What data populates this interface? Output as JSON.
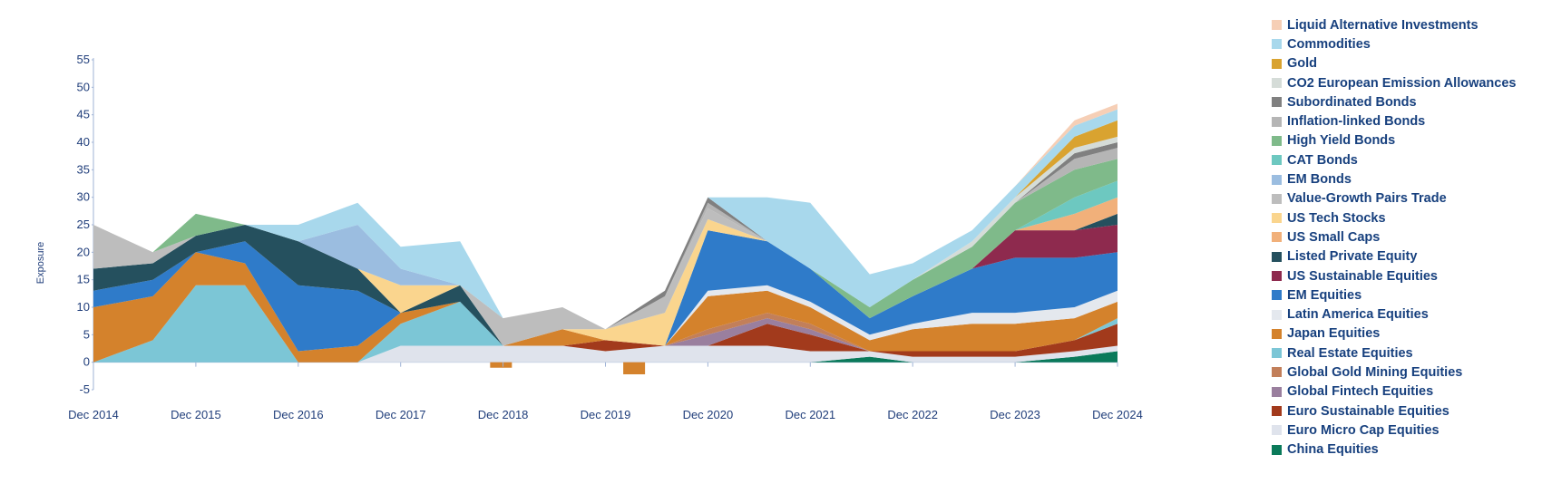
{
  "chart_data": {
    "type": "area",
    "ylabel": "Exposure",
    "ylim": [
      -5,
      55
    ],
    "yticks": [
      "55",
      "50",
      "45",
      "40",
      "35",
      "30",
      "25",
      "20",
      "15",
      "10",
      "5",
      "0",
      "-5"
    ],
    "xticks": [
      "Dec 2014",
      "Dec 2015",
      "Dec 2016",
      "Dec 2017",
      "Dec 2018",
      "Dec 2019",
      "Dec 2020",
      "Dec 2021",
      "Dec 2022",
      "Dec 2023",
      "Dec 2024"
    ],
    "x": [
      2014.92,
      2015.5,
      2015.92,
      2016.4,
      2016.92,
      2017.5,
      2017.92,
      2018.5,
      2018.92,
      2019.5,
      2019.92,
      2020.5,
      2020.92,
      2021.5,
      2021.92,
      2022.5,
      2022.92,
      2023.5,
      2023.92,
      2024.5,
      2024.92
    ],
    "legend_position": "right",
    "series": [
      {
        "name": "China Equities",
        "color": "#0a7a5a",
        "values": [
          0,
          0,
          0,
          0,
          0,
          0,
          0,
          0,
          0,
          0,
          0,
          0,
          0,
          0,
          0,
          1,
          0,
          0,
          0,
          1,
          2
        ]
      },
      {
        "name": "Euro Micro Cap Equities",
        "color": "#dfe3ec",
        "values": [
          0,
          0,
          0,
          0,
          0,
          0,
          3,
          3,
          3,
          3,
          2,
          3,
          3,
          3,
          2,
          1,
          1,
          1,
          1,
          1,
          1
        ]
      },
      {
        "name": "Euro Sustainable Equities",
        "color": "#a23a1c",
        "values": [
          0,
          0,
          0,
          0,
          0,
          0,
          0,
          0,
          0,
          0,
          2,
          0,
          0,
          4,
          3,
          0,
          1,
          1,
          1,
          2,
          4
        ]
      },
      {
        "name": "Global Fintech Equities",
        "color": "#9a7f9e",
        "values": [
          0,
          0,
          0,
          0,
          0,
          0,
          0,
          0,
          0,
          0,
          0,
          0,
          2,
          1,
          1,
          0,
          0,
          0,
          0,
          0,
          0
        ]
      },
      {
        "name": "Global Gold Mining Equities",
        "color": "#c27f5a",
        "values": [
          0,
          0,
          0,
          0,
          0,
          0,
          0,
          0,
          0,
          0,
          0,
          0,
          1,
          1,
          1,
          0,
          0,
          0,
          0,
          0,
          0
        ]
      },
      {
        "name": "Real Estate Equities",
        "color": "#7cc6d6",
        "values": [
          0,
          4,
          14,
          14,
          0,
          0,
          4,
          8,
          0,
          0,
          0,
          0,
          0,
          0,
          0,
          0,
          0,
          0,
          0,
          0,
          1
        ]
      },
      {
        "name": "Japan Equities",
        "color": "#d4822c",
        "values": [
          10,
          8,
          6,
          4,
          2,
          3,
          2,
          0,
          0,
          3,
          0,
          0,
          6,
          4,
          3,
          2,
          4,
          5,
          5,
          4,
          3
        ]
      },
      {
        "name": "Latin America Equities",
        "color": "#e4e8ee",
        "values": [
          0,
          0,
          0,
          0,
          0,
          0,
          0,
          0,
          0,
          0,
          0,
          0,
          1,
          1,
          1,
          1,
          1,
          2,
          2,
          2,
          2
        ]
      },
      {
        "name": "EM Equities",
        "color": "#2f7bc9",
        "values": [
          3,
          3,
          0,
          4,
          12,
          10,
          0,
          0,
          0,
          0,
          0,
          0,
          11,
          8,
          6,
          3,
          5,
          8,
          10,
          9,
          7
        ]
      },
      {
        "name": "US Sustainable Equities",
        "color": "#8e2a4e",
        "values": [
          0,
          0,
          0,
          0,
          0,
          0,
          0,
          0,
          0,
          0,
          0,
          0,
          0,
          0,
          0,
          0,
          0,
          0,
          5,
          5,
          5
        ]
      },
      {
        "name": "Listed Private Equity",
        "color": "#25505e",
        "values": [
          4,
          3,
          3,
          3,
          8,
          4,
          0,
          3,
          0,
          0,
          0,
          0,
          0,
          0,
          0,
          0,
          0,
          0,
          0,
          0,
          2
        ]
      },
      {
        "name": "US Small Caps",
        "color": "#f1b07a",
        "values": [
          0,
          0,
          0,
          0,
          0,
          0,
          0,
          0,
          0,
          0,
          0,
          0,
          0,
          0,
          0,
          0,
          0,
          0,
          0,
          3,
          3
        ]
      },
      {
        "name": "US Tech Stocks",
        "color": "#fad58e",
        "values": [
          0,
          0,
          0,
          0,
          0,
          0,
          5,
          0,
          0,
          0,
          2,
          6,
          2,
          0,
          0,
          0,
          0,
          0,
          0,
          0,
          0
        ]
      },
      {
        "name": "Value-Growth Pairs Trade",
        "color": "#bdbdbd",
        "values": [
          8,
          2,
          0,
          0,
          0,
          0,
          0,
          0,
          5,
          4,
          0,
          3,
          2,
          0,
          0,
          0,
          0,
          0,
          0,
          0,
          0
        ]
      },
      {
        "name": "EM Bonds",
        "color": "#9bbde0",
        "values": [
          0,
          0,
          0,
          0,
          0,
          8,
          3,
          0,
          0,
          0,
          0,
          0,
          0,
          0,
          0,
          0,
          0,
          0,
          0,
          0,
          0
        ]
      },
      {
        "name": "CAT Bonds",
        "color": "#6dc8c0",
        "values": [
          0,
          0,
          0,
          0,
          0,
          0,
          0,
          0,
          0,
          0,
          0,
          0,
          0,
          0,
          0,
          0,
          0,
          0,
          0,
          3,
          3
        ]
      },
      {
        "name": "High Yield Bonds",
        "color": "#7fba8a",
        "values": [
          0,
          0,
          4,
          0,
          0,
          0,
          0,
          0,
          0,
          0,
          0,
          0,
          0,
          0,
          0,
          2,
          3,
          4,
          5,
          5,
          4
        ]
      },
      {
        "name": "Inflation-linked Bonds",
        "color": "#b5b5b5",
        "values": [
          0,
          0,
          0,
          0,
          0,
          0,
          0,
          0,
          0,
          0,
          0,
          0,
          1,
          0,
          0,
          0,
          0,
          0,
          0,
          2,
          2
        ]
      },
      {
        "name": "Subordinated Bonds",
        "color": "#808080",
        "values": [
          0,
          0,
          0,
          0,
          0,
          0,
          0,
          0,
          0,
          0,
          0,
          1,
          1,
          0,
          0,
          0,
          0,
          0,
          0,
          1,
          1
        ]
      },
      {
        "name": "CO2 European Emission Allowances",
        "color": "#d5dcd8",
        "values": [
          0,
          0,
          0,
          0,
          0,
          0,
          0,
          0,
          0,
          0,
          0,
          0,
          0,
          0,
          0,
          0,
          0,
          1,
          1,
          1,
          1
        ]
      },
      {
        "name": "Gold",
        "color": "#d9a330",
        "values": [
          0,
          0,
          0,
          0,
          0,
          0,
          0,
          0,
          0,
          0,
          0,
          0,
          0,
          0,
          0,
          0,
          0,
          0,
          0,
          2,
          3
        ]
      },
      {
        "name": "Commodities",
        "color": "#a8d8ec",
        "values": [
          0,
          0,
          0,
          0,
          3,
          4,
          4,
          8,
          0,
          0,
          0,
          0,
          0,
          8,
          12,
          6,
          3,
          2,
          2,
          2,
          2
        ]
      },
      {
        "name": "Liquid Alternative Investments",
        "color": "#f6cfb6",
        "values": [
          0,
          0,
          0,
          0,
          0,
          0,
          0,
          0,
          0,
          0,
          0,
          0,
          0,
          0,
          0,
          0,
          0,
          0,
          0,
          1,
          1
        ]
      }
    ],
    "negative_marks": [
      {
        "series": "Japan Equities",
        "x": 2018.9,
        "value": -1
      },
      {
        "series": "Japan Equities",
        "x": 2020.2,
        "value": -2.2
      }
    ]
  }
}
